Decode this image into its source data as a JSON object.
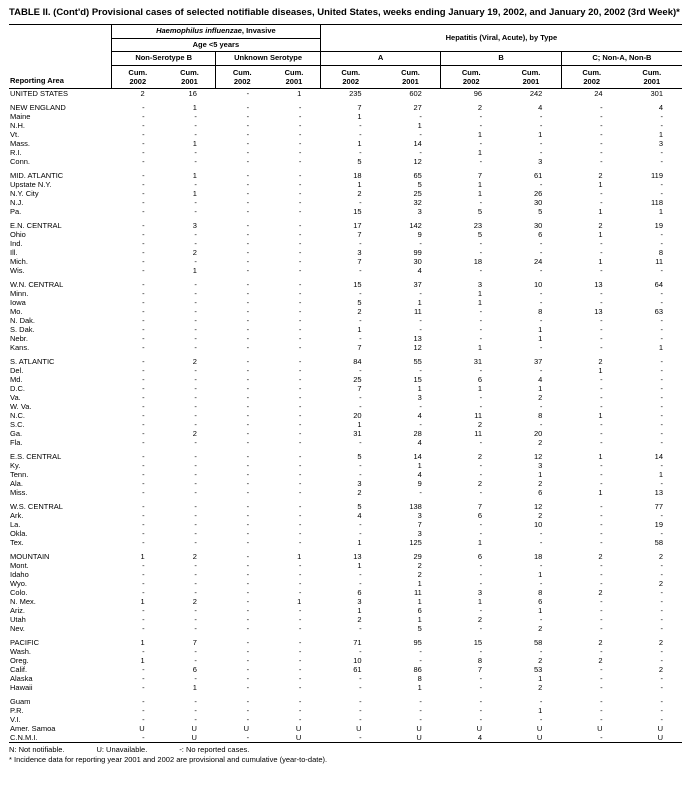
{
  "title": "TABLE II. (Cont'd) Provisional cases of selected notifiable diseases, United States, weeks ending January 19, 2002, and January 20, 2002 (3rd Week)*",
  "header": {
    "reporting_area": "Reporting Area",
    "group1_italic": "Haemophilus influenzae",
    "group1_rest": ", Invasive",
    "group1_sub": "Age <5 years",
    "group2": "Hepatitis (Viral, Acute), by Type",
    "subgroups": [
      "Non-Serotype B",
      "Unknown Serotype",
      "A",
      "B",
      "C; Non-A, Non-B"
    ],
    "cum_label": "Cum.",
    "years": [
      "2002",
      "2001"
    ]
  },
  "table": {
    "sections": [
      {
        "rows": [
          {
            "area": "UNITED STATES",
            "v": [
              "2",
              "16",
              "-",
              "1",
              "235",
              "602",
              "96",
              "242",
              "24",
              "301"
            ]
          }
        ]
      },
      {
        "rows": [
          {
            "area": "NEW ENGLAND",
            "v": [
              "-",
              "1",
              "-",
              "-",
              "7",
              "27",
              "2",
              "4",
              "-",
              "4"
            ]
          },
          {
            "area": "Maine",
            "v": [
              "-",
              "-",
              "-",
              "-",
              "1",
              "-",
              "-",
              "-",
              "-",
              "-"
            ]
          },
          {
            "area": "N.H.",
            "v": [
              "-",
              "-",
              "-",
              "-",
              "-",
              "1",
              "-",
              "-",
              "-",
              "-"
            ]
          },
          {
            "area": "Vt.",
            "v": [
              "-",
              "-",
              "-",
              "-",
              "-",
              "-",
              "1",
              "1",
              "-",
              "1"
            ]
          },
          {
            "area": "Mass.",
            "v": [
              "-",
              "1",
              "-",
              "-",
              "1",
              "14",
              "-",
              "-",
              "-",
              "3"
            ]
          },
          {
            "area": "R.I.",
            "v": [
              "-",
              "-",
              "-",
              "-",
              "-",
              "-",
              "1",
              "-",
              "-",
              "-"
            ]
          },
          {
            "area": "Conn.",
            "v": [
              "-",
              "-",
              "-",
              "-",
              "5",
              "12",
              "-",
              "3",
              "-",
              "-"
            ]
          }
        ]
      },
      {
        "rows": [
          {
            "area": "MID. ATLANTIC",
            "v": [
              "-",
              "1",
              "-",
              "-",
              "18",
              "65",
              "7",
              "61",
              "2",
              "119"
            ]
          },
          {
            "area": "Upstate N.Y.",
            "v": [
              "-",
              "-",
              "-",
              "-",
              "1",
              "5",
              "1",
              "-",
              "1",
              "-"
            ]
          },
          {
            "area": "N.Y. City",
            "v": [
              "-",
              "1",
              "-",
              "-",
              "2",
              "25",
              "1",
              "26",
              "-",
              "-"
            ]
          },
          {
            "area": "N.J.",
            "v": [
              "-",
              "-",
              "-",
              "-",
              "-",
              "32",
              "-",
              "30",
              "-",
              "118"
            ]
          },
          {
            "area": "Pa.",
            "v": [
              "-",
              "-",
              "-",
              "-",
              "15",
              "3",
              "5",
              "5",
              "1",
              "1"
            ]
          }
        ]
      },
      {
        "rows": [
          {
            "area": "E.N. CENTRAL",
            "v": [
              "-",
              "3",
              "-",
              "-",
              "17",
              "142",
              "23",
              "30",
              "2",
              "19"
            ]
          },
          {
            "area": "Ohio",
            "v": [
              "-",
              "-",
              "-",
              "-",
              "7",
              "9",
              "5",
              "6",
              "1",
              "-"
            ]
          },
          {
            "area": "Ind.",
            "v": [
              "-",
              "-",
              "-",
              "-",
              "-",
              "-",
              "-",
              "-",
              "-",
              "-"
            ]
          },
          {
            "area": "Ill.",
            "v": [
              "-",
              "2",
              "-",
              "-",
              "3",
              "99",
              "-",
              "-",
              "-",
              "8"
            ]
          },
          {
            "area": "Mich.",
            "v": [
              "-",
              "-",
              "-",
              "-",
              "7",
              "30",
              "18",
              "24",
              "1",
              "11"
            ]
          },
          {
            "area": "Wis.",
            "v": [
              "-",
              "1",
              "-",
              "-",
              "-",
              "4",
              "-",
              "-",
              "-",
              "-"
            ]
          }
        ]
      },
      {
        "rows": [
          {
            "area": "W.N. CENTRAL",
            "v": [
              "-",
              "-",
              "-",
              "-",
              "15",
              "37",
              "3",
              "10",
              "13",
              "64"
            ]
          },
          {
            "area": "Minn.",
            "v": [
              "-",
              "-",
              "-",
              "-",
              "-",
              "-",
              "1",
              "-",
              "-",
              "-"
            ]
          },
          {
            "area": "Iowa",
            "v": [
              "-",
              "-",
              "-",
              "-",
              "5",
              "1",
              "1",
              "-",
              "-",
              "-"
            ]
          },
          {
            "area": "Mo.",
            "v": [
              "-",
              "-",
              "-",
              "-",
              "2",
              "11",
              "-",
              "8",
              "13",
              "63"
            ]
          },
          {
            "area": "N. Dak.",
            "v": [
              "-",
              "-",
              "-",
              "-",
              "-",
              "-",
              "-",
              "-",
              "-",
              "-"
            ]
          },
          {
            "area": "S. Dak.",
            "v": [
              "-",
              "-",
              "-",
              "-",
              "1",
              "-",
              "-",
              "1",
              "-",
              "-"
            ]
          },
          {
            "area": "Nebr.",
            "v": [
              "-",
              "-",
              "-",
              "-",
              "-",
              "13",
              "-",
              "1",
              "-",
              "-"
            ]
          },
          {
            "area": "Kans.",
            "v": [
              "-",
              "-",
              "-",
              "-",
              "7",
              "12",
              "1",
              "-",
              "-",
              "1"
            ]
          }
        ]
      },
      {
        "rows": [
          {
            "area": "S. ATLANTIC",
            "v": [
              "-",
              "2",
              "-",
              "-",
              "84",
              "55",
              "31",
              "37",
              "2",
              "-"
            ]
          },
          {
            "area": "Del.",
            "v": [
              "-",
              "-",
              "-",
              "-",
              "-",
              "-",
              "-",
              "-",
              "1",
              "-"
            ]
          },
          {
            "area": "Md.",
            "v": [
              "-",
              "-",
              "-",
              "-",
              "25",
              "15",
              "6",
              "4",
              "-",
              "-"
            ]
          },
          {
            "area": "D.C.",
            "v": [
              "-",
              "-",
              "-",
              "-",
              "7",
              "1",
              "1",
              "1",
              "-",
              "-"
            ]
          },
          {
            "area": "Va.",
            "v": [
              "-",
              "-",
              "-",
              "-",
              "-",
              "3",
              "-",
              "2",
              "-",
              "-"
            ]
          },
          {
            "area": "W. Va.",
            "v": [
              "-",
              "-",
              "-",
              "-",
              "-",
              "-",
              "-",
              "-",
              "-",
              "-"
            ]
          },
          {
            "area": "N.C.",
            "v": [
              "-",
              "-",
              "-",
              "-",
              "20",
              "4",
              "11",
              "8",
              "1",
              "-"
            ]
          },
          {
            "area": "S.C.",
            "v": [
              "-",
              "-",
              "-",
              "-",
              "1",
              "-",
              "2",
              "-",
              "-",
              "-"
            ]
          },
          {
            "area": "Ga.",
            "v": [
              "-",
              "2",
              "-",
              "-",
              "31",
              "28",
              "11",
              "20",
              "-",
              "-"
            ]
          },
          {
            "area": "Fla.",
            "v": [
              "-",
              "-",
              "-",
              "-",
              "-",
              "4",
              "-",
              "2",
              "-",
              "-"
            ]
          }
        ]
      },
      {
        "rows": [
          {
            "area": "E.S. CENTRAL",
            "v": [
              "-",
              "-",
              "-",
              "-",
              "5",
              "14",
              "2",
              "12",
              "1",
              "14"
            ]
          },
          {
            "area": "Ky.",
            "v": [
              "-",
              "-",
              "-",
              "-",
              "-",
              "1",
              "-",
              "3",
              "-",
              "-"
            ]
          },
          {
            "area": "Tenn.",
            "v": [
              "-",
              "-",
              "-",
              "-",
              "-",
              "4",
              "-",
              "1",
              "-",
              "1"
            ]
          },
          {
            "area": "Ala.",
            "v": [
              "-",
              "-",
              "-",
              "-",
              "3",
              "9",
              "2",
              "2",
              "-",
              "-"
            ]
          },
          {
            "area": "Miss.",
            "v": [
              "-",
              "-",
              "-",
              "-",
              "2",
              "-",
              "-",
              "6",
              "1",
              "13"
            ]
          }
        ]
      },
      {
        "rows": [
          {
            "area": "W.S. CENTRAL",
            "v": [
              "-",
              "-",
              "-",
              "-",
              "5",
              "138",
              "7",
              "12",
              "-",
              "77"
            ]
          },
          {
            "area": "Ark.",
            "v": [
              "-",
              "-",
              "-",
              "-",
              "4",
              "3",
              "6",
              "2",
              "-",
              "-"
            ]
          },
          {
            "area": "La.",
            "v": [
              "-",
              "-",
              "-",
              "-",
              "-",
              "7",
              "-",
              "10",
              "-",
              "19"
            ]
          },
          {
            "area": "Okla.",
            "v": [
              "-",
              "-",
              "-",
              "-",
              "-",
              "3",
              "-",
              "-",
              "-",
              "-"
            ]
          },
          {
            "area": "Tex.",
            "v": [
              "-",
              "-",
              "-",
              "-",
              "1",
              "125",
              "1",
              "-",
              "-",
              "58"
            ]
          }
        ]
      },
      {
        "rows": [
          {
            "area": "MOUNTAIN",
            "v": [
              "1",
              "2",
              "-",
              "1",
              "13",
              "29",
              "6",
              "18",
              "2",
              "2"
            ]
          },
          {
            "area": "Mont.",
            "v": [
              "-",
              "-",
              "-",
              "-",
              "1",
              "2",
              "-",
              "-",
              "-",
              "-"
            ]
          },
          {
            "area": "Idaho",
            "v": [
              "-",
              "-",
              "-",
              "-",
              "-",
              "2",
              "-",
              "1",
              "-",
              "-"
            ]
          },
          {
            "area": "Wyo.",
            "v": [
              "-",
              "-",
              "-",
              "-",
              "-",
              "1",
              "-",
              "-",
              "-",
              "2"
            ]
          },
          {
            "area": "Colo.",
            "v": [
              "-",
              "-",
              "-",
              "-",
              "6",
              "11",
              "3",
              "8",
              "2",
              "-"
            ]
          },
          {
            "area": "N. Mex.",
            "v": [
              "1",
              "2",
              "-",
              "1",
              "3",
              "1",
              "1",
              "6",
              "-",
              "-"
            ]
          },
          {
            "area": "Ariz.",
            "v": [
              "-",
              "-",
              "-",
              "-",
              "1",
              "6",
              "-",
              "1",
              "-",
              "-"
            ]
          },
          {
            "area": "Utah",
            "v": [
              "-",
              "-",
              "-",
              "-",
              "2",
              "1",
              "2",
              "-",
              "-",
              "-"
            ]
          },
          {
            "area": "Nev.",
            "v": [
              "-",
              "-",
              "-",
              "-",
              "-",
              "5",
              "-",
              "2",
              "-",
              "-"
            ]
          }
        ]
      },
      {
        "rows": [
          {
            "area": "PACIFIC",
            "v": [
              "1",
              "7",
              "-",
              "-",
              "71",
              "95",
              "15",
              "58",
              "2",
              "2"
            ]
          },
          {
            "area": "Wash.",
            "v": [
              "-",
              "-",
              "-",
              "-",
              "-",
              "-",
              "-",
              "-",
              "-",
              "-"
            ]
          },
          {
            "area": "Oreg.",
            "v": [
              "1",
              "-",
              "-",
              "-",
              "10",
              "-",
              "8",
              "2",
              "2",
              "-"
            ]
          },
          {
            "area": "Calif.",
            "v": [
              "-",
              "6",
              "-",
              "-",
              "61",
              "86",
              "7",
              "53",
              "-",
              "2"
            ]
          },
          {
            "area": "Alaska",
            "v": [
              "-",
              "-",
              "-",
              "-",
              "-",
              "8",
              "-",
              "1",
              "-",
              "-"
            ]
          },
          {
            "area": "Hawaii",
            "v": [
              "-",
              "1",
              "-",
              "-",
              "-",
              "1",
              "-",
              "2",
              "-",
              "-"
            ]
          }
        ]
      },
      {
        "rows": [
          {
            "area": "Guam",
            "v": [
              "-",
              "-",
              "-",
              "-",
              "-",
              "-",
              "-",
              "-",
              "-",
              "-"
            ]
          },
          {
            "area": "P.R.",
            "v": [
              "-",
              "-",
              "-",
              "-",
              "-",
              "-",
              "-",
              "1",
              "-",
              "-"
            ]
          },
          {
            "area": "V.I.",
            "v": [
              "-",
              "-",
              "-",
              "-",
              "-",
              "-",
              "-",
              "-",
              "-",
              "-"
            ]
          },
          {
            "area": "Amer. Samoa",
            "v": [
              "U",
              "U",
              "U",
              "U",
              "U",
              "U",
              "U",
              "U",
              "U",
              "U"
            ]
          },
          {
            "area": "C.N.M.I.",
            "v": [
              "-",
              "U",
              "-",
              "U",
              "-",
              "U",
              "4",
              "U",
              "-",
              "U"
            ]
          }
        ]
      }
    ]
  },
  "footnotes": {
    "legend": [
      "N: Not notifiable.",
      "U: Unavailable.",
      "-: No reported cases."
    ],
    "incidence": "* Incidence data for reporting year 2001 and 2002 are provisional and cumulative (year-to-date)."
  }
}
